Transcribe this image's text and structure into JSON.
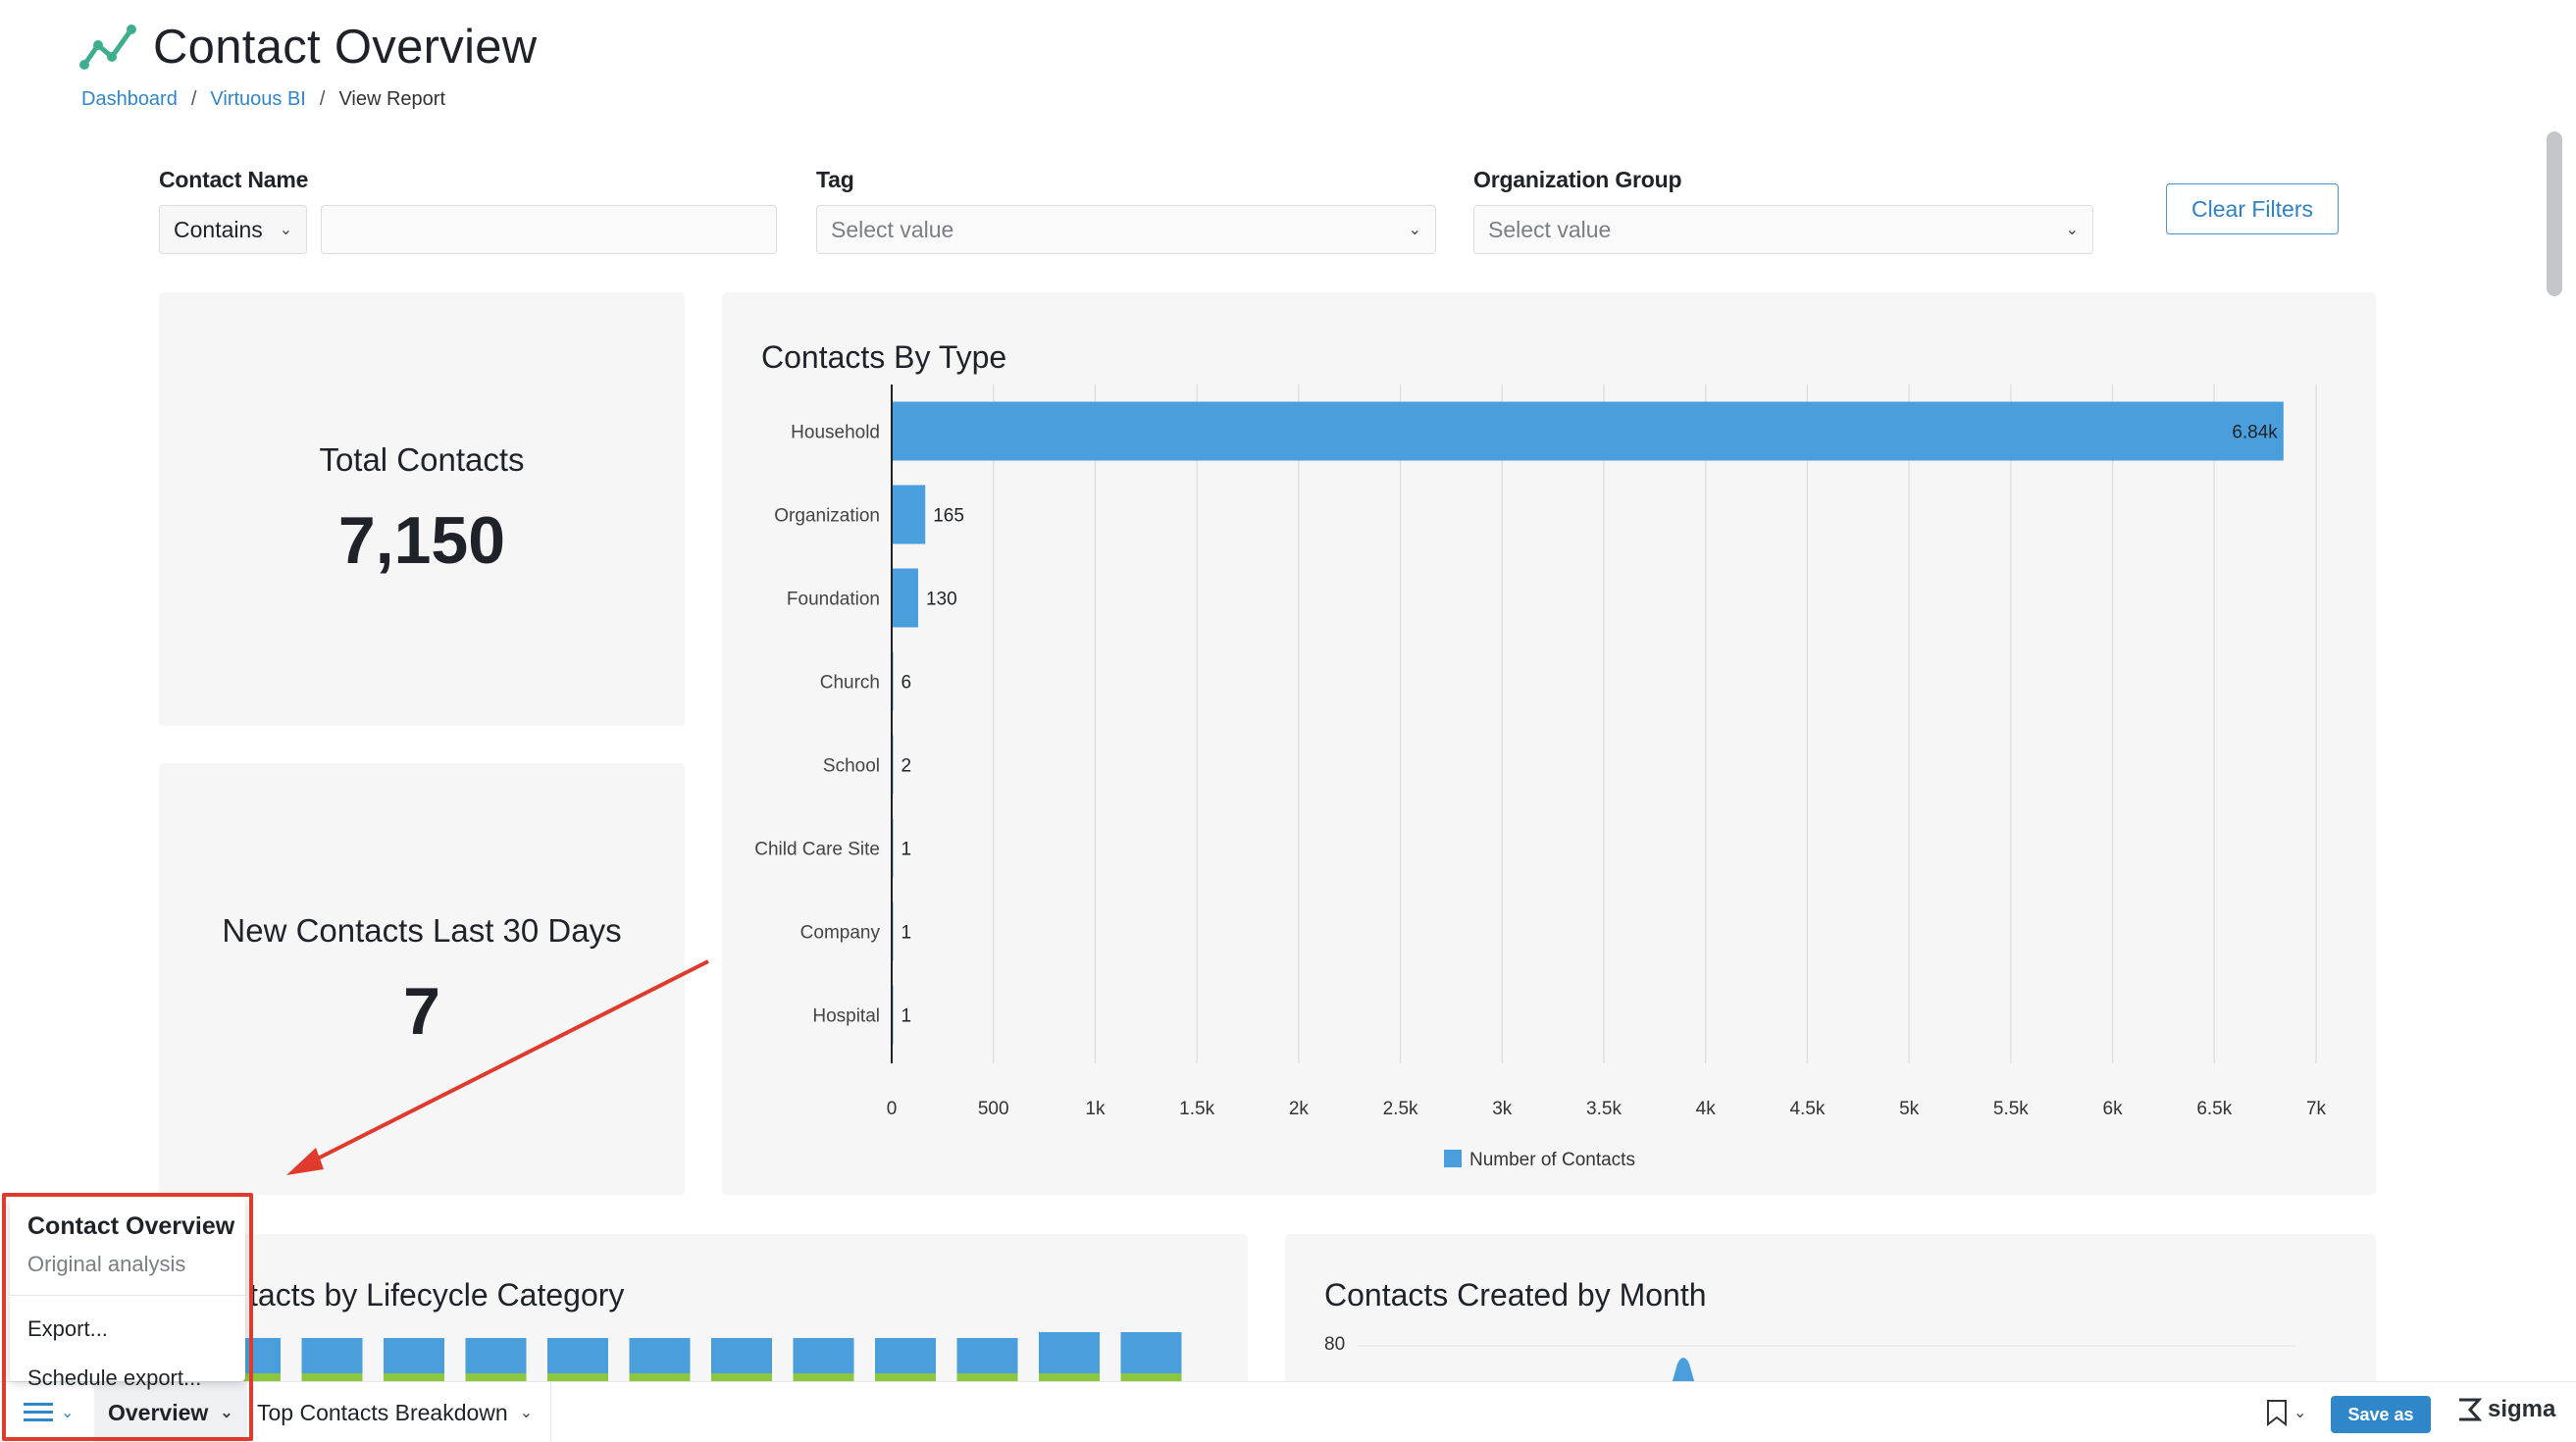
{
  "header": {
    "title": "Contact Overview",
    "breadcrumb": {
      "dashboard": "Dashboard",
      "virtuous_bi": "Virtuous BI",
      "current": "View Report",
      "separator": "/"
    }
  },
  "filters": {
    "contact_name": {
      "label": "Contact Name",
      "operator": "Contains",
      "value": ""
    },
    "tag": {
      "label": "Tag",
      "placeholder": "Select value"
    },
    "org_group": {
      "label": "Organization Group",
      "placeholder": "Select value"
    },
    "clear_label": "Clear Filters"
  },
  "kpis": {
    "total": {
      "label": "Total Contacts",
      "value": "7,150"
    },
    "new30": {
      "label": "New Contacts Last 30 Days",
      "value": "7"
    }
  },
  "chart_data": [
    {
      "type": "bar",
      "orientation": "horizontal",
      "title": "Contacts By Type",
      "categories": [
        "Household",
        "Organization",
        "Foundation",
        "Church",
        "School",
        "Child Care Site",
        "Company",
        "Hospital"
      ],
      "values": [
        6840,
        165,
        130,
        6,
        2,
        1,
        1,
        1
      ],
      "data_labels": [
        "6.84k",
        "165",
        "130",
        "6",
        "2",
        "1",
        "1",
        "1"
      ],
      "xlim": [
        0,
        7000
      ],
      "ticks": [
        0,
        500,
        1000,
        1500,
        2000,
        2500,
        3000,
        3500,
        4000,
        4500,
        5000,
        5500,
        6000,
        6500,
        7000
      ],
      "tick_labels": [
        "0",
        "500",
        "1k",
        "1.5k",
        "2k",
        "2.5k",
        "3k",
        "3.5k",
        "4k",
        "4.5k",
        "5k",
        "5.5k",
        "6k",
        "6.5k",
        "7k"
      ],
      "series": [
        {
          "name": "Number of Contacts",
          "color": "#4a9edb"
        }
      ],
      "legend": "bottom",
      "grid": true
    },
    {
      "type": "bar",
      "title": "Contacts by Lifecycle Category",
      "partially_visible": true
    },
    {
      "type": "area",
      "title": "Contacts Created by Month",
      "y_tick_visible": "80",
      "partially_visible": true
    }
  ],
  "lifecycle": {
    "visible_title": "tacts by Lifecycle Category"
  },
  "monthly": {
    "title": "Contacts Created by Month",
    "y_tick": "80"
  },
  "popup": {
    "title": "Contact Overview",
    "subtitle": "Original analysis",
    "items": [
      "Export...",
      "Schedule export..."
    ]
  },
  "bottombar": {
    "tabs": [
      "Overview",
      "Top Contacts Breakdown"
    ],
    "save_label": "Save as",
    "brand": "sigma"
  },
  "colors": {
    "bar": "#4a9edb",
    "green": "#8cc63f",
    "accent": "#2f86c9",
    "highlight": "#e03a2c"
  },
  "icons": [
    "line-chart-logo-icon",
    "chevron-down-icon",
    "menu-icon",
    "bookmark-icon",
    "sigma-logo-icon"
  ]
}
